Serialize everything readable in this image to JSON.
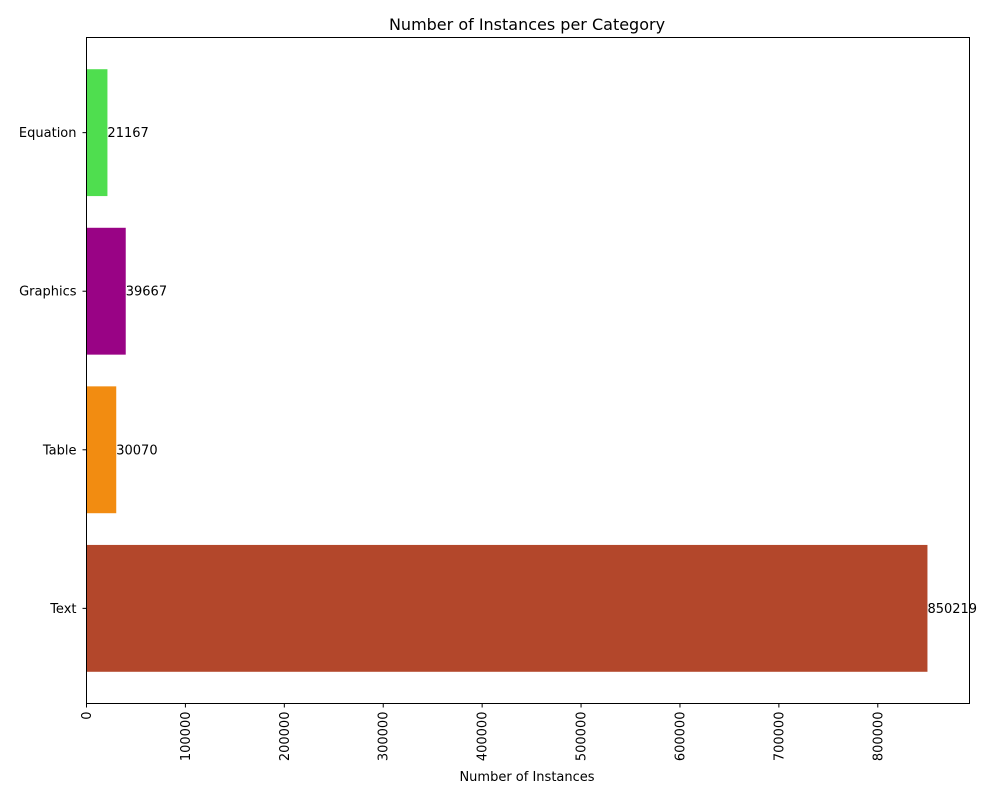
{
  "chart_data": {
    "type": "bar",
    "orientation": "horizontal",
    "title": "Number of Instances per Category",
    "xlabel": "Number of Instances",
    "ylabel": "",
    "categories": [
      "Text",
      "Table",
      "Graphics",
      "Equation"
    ],
    "values": [
      850219,
      30070,
      39667,
      21167
    ],
    "colors": [
      "#b3472b",
      "#f28c11",
      "#990385",
      "#4fde4f"
    ],
    "xlim": [
      0,
      892730
    ],
    "xticks": [
      0,
      100000,
      200000,
      300000,
      400000,
      500000,
      600000,
      700000,
      800000
    ],
    "xtick_rotation": "vertical",
    "grid": false,
    "legend": "none"
  }
}
